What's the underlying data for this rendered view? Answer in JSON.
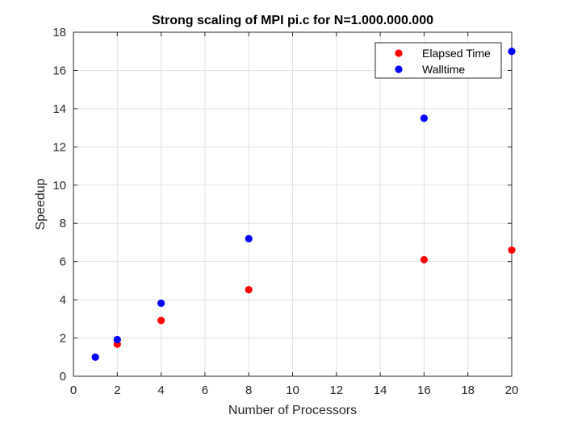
{
  "chart_data": {
    "type": "scatter",
    "title": "Strong scaling of MPI pi.c for N=1.000.000.000",
    "xlabel": "Number of Processors",
    "ylabel": "Speedup",
    "xlim": [
      0,
      20
    ],
    "ylim": [
      0,
      18
    ],
    "xticks": [
      0,
      2,
      4,
      6,
      8,
      10,
      12,
      14,
      16,
      18,
      20
    ],
    "yticks": [
      0,
      2,
      4,
      6,
      8,
      10,
      12,
      14,
      16,
      18
    ],
    "grid": true,
    "legend_position": "top-right",
    "series": [
      {
        "name": "Elapsed Time",
        "color": "#ff0000",
        "points": [
          [
            2,
            1.68
          ],
          [
            4,
            2.92
          ],
          [
            8,
            4.53
          ],
          [
            16,
            6.1
          ],
          [
            20,
            6.6
          ]
        ]
      },
      {
        "name": "Walltime",
        "color": "#0000ff",
        "points": [
          [
            1,
            1.0
          ],
          [
            2,
            1.92
          ],
          [
            4,
            3.82
          ],
          [
            8,
            7.2
          ],
          [
            16,
            13.5
          ],
          [
            20,
            17.0
          ]
        ]
      }
    ]
  }
}
